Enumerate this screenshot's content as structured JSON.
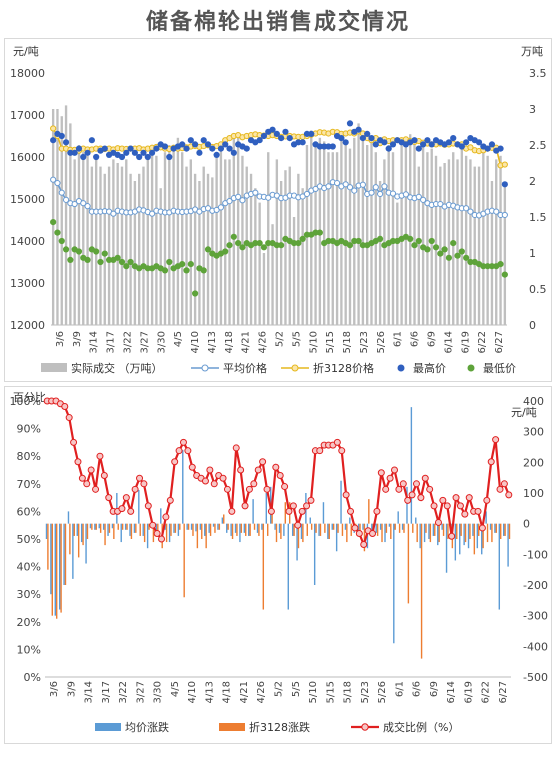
{
  "title": "储备棉轮出销售成交情况",
  "top": {
    "left_unit": "元/吨",
    "right_unit": "万吨",
    "legend": [
      "实际成交 （万吨）",
      "平均价格",
      "折3128价格",
      "最高价",
      "最低价"
    ]
  },
  "bottom": {
    "left_unit": "百分比",
    "right_unit": "元/吨",
    "legend": [
      "均价涨跌",
      "折3128涨跌",
      "成交比例（%）"
    ]
  },
  "colors": {
    "bar_gray": "#bfbfbf",
    "avg_blue": "#6a9bd1",
    "zhe_gold": "#e6b81e",
    "high_blue": "#2f5fbf",
    "low_green": "#5ea33a",
    "bar_blue": "#5b9bd5",
    "bar_orange": "#ed7d31",
    "ratio_red": "#e02020"
  },
  "chart_data": [
    {
      "type": "bar",
      "title": "储备棉轮出销售成交情况",
      "ylabel_left": "元/吨",
      "ylabel_right": "万吨",
      "ylim_left": [
        12000,
        18000
      ],
      "ylim_right": [
        0,
        3.5
      ],
      "yticks_left": [
        12000,
        13000,
        14000,
        15000,
        16000,
        17000,
        18000
      ],
      "yticks_right": [
        0,
        0.5,
        1,
        1.5,
        2,
        2.5,
        3,
        3.5
      ],
      "xtick_labels": [
        "3/6",
        "3/9",
        "3/14",
        "3/17",
        "3/22",
        "3/27",
        "3/30",
        "4/5",
        "4/10",
        "4/13",
        "4/18",
        "4/21",
        "4/26",
        "5/2",
        "5/5",
        "5/10",
        "5/15",
        "5/18",
        "5/23",
        "5/26",
        "6/1",
        "6/6",
        "6/9",
        "6/14",
        "6/19",
        "6/22",
        "6/27"
      ],
      "legend_position": "bottom",
      "grid": false,
      "series": [
        {
          "name": "实际成交 （万吨）",
          "type": "bar",
          "axis": "right",
          "values": [
            3.0,
            3.0,
            2.9,
            3.05,
            2.8,
            2.3,
            2.5,
            2.4,
            2.35,
            2.2,
            2.3,
            2.2,
            2.1,
            2.2,
            2.3,
            2.25,
            2.2,
            2.3,
            2.1,
            2.0,
            2.1,
            2.2,
            2.3,
            2.4,
            2.35,
            1.9,
            2.4,
            2.5,
            2.5,
            2.6,
            2.4,
            2.2,
            2.3,
            2.1,
            2.0,
            2.2,
            2.1,
            2.05,
            2.4,
            2.45,
            2.3,
            2.3,
            2.6,
            2.65,
            2.35,
            2.2,
            2.1,
            1.9,
            1.7,
            1.0,
            2.4,
            1.4,
            2.3,
            2.0,
            2.15,
            2.2,
            1.5,
            2.1,
            1.9,
            2.5,
            2.7,
            2.55,
            2.6,
            2.55,
            2.4,
            2.4,
            2.4,
            2.6,
            2.55,
            2.45,
            2.6,
            2.8,
            2.7,
            2.5,
            2.6,
            2.4,
            2.0,
            2.3,
            2.5,
            2.4,
            1.7,
            2.5,
            2.6,
            2.65,
            2.55,
            2.2,
            2.5,
            2.4,
            2.45,
            2.35,
            2.2,
            2.25,
            2.3,
            2.4,
            2.3,
            2.45,
            2.35,
            2.3,
            2.2,
            2.2,
            2.4,
            2.35,
            2.0,
            2.3,
            2.35,
            1.95
          ]
        },
        {
          "name": "平均价格",
          "type": "line",
          "axis": "left",
          "values": [
            15460,
            15380,
            15150,
            14980,
            14900,
            14880,
            14950,
            14900,
            14830,
            14700,
            14700,
            14700,
            14710,
            14700,
            14650,
            14720,
            14700,
            14680,
            14680,
            14700,
            14750,
            14730,
            14690,
            14650,
            14720,
            14700,
            14680,
            14680,
            14720,
            14700,
            14690,
            14700,
            14710,
            14750,
            14700,
            14760,
            14780,
            14720,
            14740,
            14800,
            14900,
            14950,
            15020,
            15050,
            14970,
            15080,
            15120,
            15150,
            15060,
            15050,
            15030,
            15100,
            15080,
            15020,
            15030,
            15080,
            15080,
            15040,
            15060,
            15120,
            15200,
            15240,
            15300,
            15260,
            15300,
            15400,
            15380,
            15300,
            15350,
            15280,
            15200,
            15320,
            15340,
            15120,
            15150,
            15280,
            15120,
            15300,
            15150,
            15130,
            15060,
            15080,
            15110,
            15040,
            15020,
            15050,
            14980,
            14900,
            14860,
            14880,
            14880,
            14820,
            14860,
            14840,
            14800,
            14780,
            14780,
            14700,
            14620,
            14610,
            14650,
            14700,
            14720,
            14700,
            14620,
            14620
          ]
        },
        {
          "name": "折3128价格",
          "type": "line",
          "axis": "left",
          "values": [
            16680,
            16500,
            16200,
            16200,
            16170,
            16170,
            16150,
            16200,
            16180,
            16180,
            16200,
            16200,
            16190,
            16200,
            16180,
            16210,
            16200,
            16190,
            16200,
            16200,
            16210,
            16180,
            16200,
            16220,
            16240,
            16230,
            16200,
            16190,
            16220,
            16200,
            16210,
            16230,
            16250,
            16260,
            16240,
            16260,
            16280,
            16240,
            16260,
            16300,
            16400,
            16450,
            16500,
            16520,
            16470,
            16500,
            16520,
            16540,
            16520,
            16510,
            16500,
            16520,
            16500,
            16480,
            16490,
            16500,
            16490,
            16480,
            16480,
            16500,
            16530,
            16560,
            16590,
            16580,
            16560,
            16600,
            16590,
            16550,
            16560,
            16580,
            16560,
            16610,
            16560,
            16450,
            16400,
            16450,
            16330,
            16420,
            16380,
            16400,
            16400,
            16400,
            16420,
            16380,
            16360,
            16380,
            16340,
            16320,
            16300,
            16300,
            16320,
            16290,
            16300,
            16320,
            16300,
            16300,
            16200,
            16230,
            16160,
            16140,
            16160,
            16200,
            16220,
            16220,
            15800,
            15820
          ]
        },
        {
          "name": "最高价",
          "type": "scatter",
          "axis": "left",
          "values": [
            16400,
            16550,
            16500,
            16350,
            16100,
            16100,
            16200,
            16000,
            16100,
            16400,
            16000,
            16150,
            16200,
            16050,
            16100,
            16050,
            16000,
            16100,
            16200,
            16100,
            16000,
            16100,
            16000,
            16100,
            16200,
            16300,
            16250,
            16000,
            16200,
            16250,
            16300,
            16200,
            16400,
            16300,
            16100,
            16400,
            16300,
            16200,
            16050,
            16200,
            16300,
            16200,
            16100,
            16300,
            16250,
            16200,
            16400,
            16350,
            16400,
            16500,
            16600,
            16650,
            16550,
            16450,
            16600,
            16450,
            16300,
            16350,
            16350,
            16550,
            16550,
            16300,
            16250,
            16250,
            16250,
            16250,
            16500,
            16450,
            16350,
            16800,
            16600,
            16650,
            16450,
            16550,
            16450,
            16300,
            16400,
            16350,
            16200,
            16300,
            16400,
            16350,
            16300,
            16350,
            16400,
            16200,
            16300,
            16400,
            16300,
            16400,
            16350,
            16300,
            16350,
            16450,
            16300,
            16250,
            16350,
            16450,
            16400,
            16350,
            16250,
            16200,
            16300,
            16150,
            16200,
            15350
          ]
        },
        {
          "name": "最低价",
          "type": "scatter",
          "axis": "left",
          "values": [
            14450,
            14200,
            14000,
            13800,
            13550,
            13800,
            13750,
            13600,
            13550,
            13800,
            13750,
            13500,
            13700,
            13550,
            13550,
            13600,
            13500,
            13400,
            13500,
            13400,
            13350,
            13400,
            13350,
            13350,
            13400,
            13350,
            13300,
            13500,
            13350,
            13400,
            13450,
            13300,
            13450,
            12750,
            13350,
            13300,
            13800,
            13700,
            13650,
            13700,
            13750,
            13900,
            14100,
            13950,
            13850,
            13950,
            13900,
            13950,
            13950,
            13850,
            13950,
            13950,
            13900,
            13900,
            14050,
            14000,
            13950,
            13950,
            14050,
            14150,
            14150,
            14200,
            14200,
            13950,
            14000,
            14000,
            13950,
            14000,
            13950,
            13900,
            14000,
            14000,
            13900,
            13900,
            13950,
            14000,
            14050,
            13900,
            13950,
            14000,
            14000,
            14050,
            14100,
            14050,
            13900,
            14000,
            13850,
            13800,
            14000,
            13850,
            13700,
            13800,
            13600,
            13950,
            13650,
            13750,
            13600,
            13500,
            13500,
            13450,
            13400,
            13400,
            13400,
            13400,
            13450,
            13200
          ]
        }
      ]
    },
    {
      "type": "bar",
      "ylabel_left": "百分比",
      "ylabel_right": "元/吨",
      "ylim_left": [
        0,
        100
      ],
      "ylim_right": [
        -500,
        400
      ],
      "yticks_left": [
        "0%",
        "10%",
        "20%",
        "30%",
        "40%",
        "50%",
        "60%",
        "70%",
        "80%",
        "90%",
        "100%"
      ],
      "yticks_right": [
        -500,
        -400,
        -300,
        -200,
        -100,
        0,
        100,
        200,
        300,
        400
      ],
      "xtick_labels": [
        "3/6",
        "3/9",
        "3/14",
        "3/17",
        "3/22",
        "3/27",
        "3/30",
        "4/5",
        "4/10",
        "4/13",
        "4/18",
        "4/21",
        "4/26",
        "5/2",
        "5/5",
        "5/10",
        "5/15",
        "5/18",
        "5/23",
        "5/26",
        "6/1",
        "6/6",
        "6/9",
        "6/14",
        "6/19",
        "6/22",
        "6/27"
      ],
      "legend_position": "bottom",
      "grid": false,
      "series": [
        {
          "name": "均价涨跌",
          "type": "bar",
          "axis": "right",
          "values": [
            -50,
            -230,
            -300,
            -280,
            -200,
            40,
            -180,
            -40,
            -60,
            -130,
            -15,
            -20,
            -15,
            -20,
            -40,
            -15,
            100,
            -60,
            -20,
            -40,
            -30,
            110,
            -40,
            -80,
            -10,
            -30,
            50,
            -20,
            -60,
            -30,
            -40,
            240,
            -20,
            -20,
            -25,
            -20,
            -40,
            -30,
            -10,
            -20,
            20,
            -30,
            -40,
            -30,
            -60,
            -30,
            -40,
            80,
            -30,
            -20,
            100,
            120,
            -20,
            -30,
            -40,
            -280,
            -40,
            -120,
            -50,
            100,
            20,
            -200,
            -40,
            70,
            -50,
            -20,
            -90,
            140,
            -20,
            20,
            -30,
            -40,
            -20,
            -80,
            -40,
            -30,
            -20,
            -60,
            -10,
            -390,
            40,
            -20,
            120,
            380,
            20,
            -80,
            -60,
            -50,
            -40,
            -70,
            -20,
            -160,
            -30,
            -120,
            -100,
            -70,
            -80,
            -40,
            -80,
            -100,
            40,
            -20,
            -30,
            -280,
            -40,
            -140
          ]
        },
        {
          "name": "折3128涨跌",
          "type": "bar",
          "axis": "right",
          "values": [
            -150,
            -300,
            -310,
            -290,
            -200,
            -100,
            -40,
            -110,
            -70,
            -50,
            -20,
            -20,
            -30,
            -70,
            -30,
            -50,
            -20,
            -20,
            -20,
            -50,
            -30,
            -40,
            -60,
            -20,
            -60,
            -40,
            -80,
            -60,
            -40,
            -30,
            -20,
            -240,
            -20,
            -40,
            -80,
            -50,
            -80,
            -40,
            -30,
            -20,
            30,
            -20,
            -50,
            -40,
            -30,
            -40,
            -40,
            -20,
            -40,
            -280,
            -40,
            80,
            -60,
            -50,
            70,
            70,
            -40,
            -80,
            -60,
            -40,
            -20,
            -30,
            -40,
            -30,
            -50,
            -20,
            -30,
            -40,
            -60,
            -40,
            -20,
            -40,
            -90,
            80,
            -20,
            -40,
            -60,
            -30,
            -50,
            -20,
            -30,
            -30,
            -260,
            -30,
            -60,
            -440,
            -30,
            -60,
            -40,
            -60,
            -40,
            -50,
            -80,
            -50,
            -40,
            -60,
            -50,
            -100,
            -40,
            -80,
            -60,
            -60,
            -30,
            -50,
            -40,
            -50
          ]
        },
        {
          "name": "成交比例（%）",
          "type": "line",
          "axis": "left",
          "values": [
            100,
            100,
            100,
            99,
            98,
            94,
            85,
            78,
            72,
            70,
            75,
            68,
            80,
            73,
            65,
            60,
            60,
            61,
            65,
            60,
            68,
            72,
            70,
            62,
            55,
            52,
            50,
            58,
            64,
            78,
            82,
            85,
            82,
            76,
            73,
            72,
            71,
            75,
            70,
            73,
            72,
            68,
            60,
            83,
            75,
            62,
            68,
            70,
            75,
            78,
            68,
            60,
            76,
            73,
            69,
            60,
            62,
            55,
            60,
            62,
            64,
            82,
            82,
            84,
            84,
            84,
            85,
            82,
            66,
            60,
            54,
            52,
            48,
            53,
            52,
            60,
            74,
            68,
            72,
            75,
            68,
            70,
            64,
            66,
            70,
            65,
            72,
            68,
            62,
            56,
            64,
            62,
            51,
            65,
            62,
            59,
            65,
            60,
            60,
            54,
            64,
            78,
            86,
            68,
            70,
            66
          ]
        }
      ]
    }
  ]
}
